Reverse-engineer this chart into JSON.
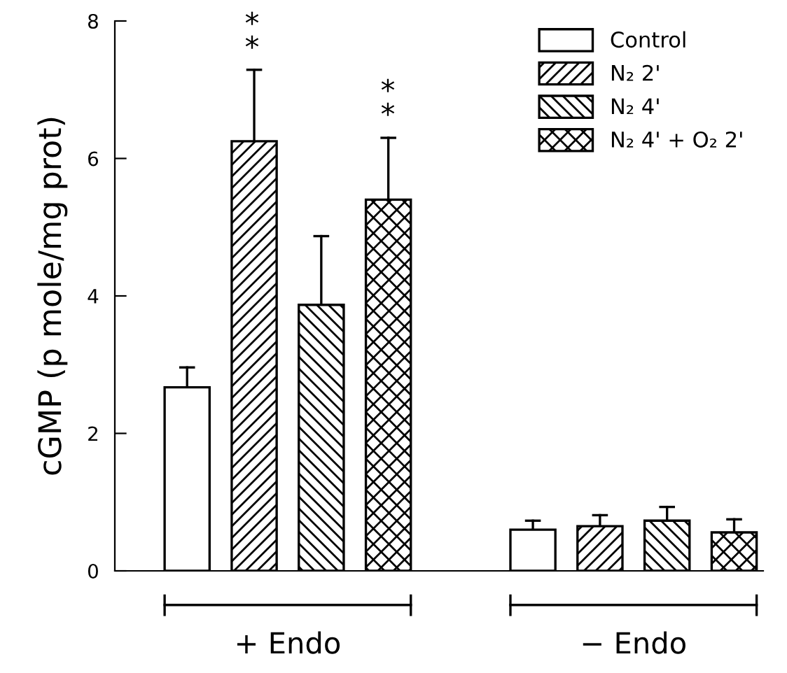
{
  "chart_data": {
    "type": "bar",
    "ylabel": "cGMP (p mole/mg prot)",
    "categories": [
      "+ Endo",
      "− Endo"
    ],
    "series": [
      {
        "name": "Control",
        "values": [
          2.67,
          0.6
        ],
        "errors": [
          0.29,
          0.13
        ]
      },
      {
        "name": "N₂ 2'",
        "values": [
          6.25,
          0.65
        ],
        "errors": [
          1.04,
          0.16
        ]
      },
      {
        "name": "N₂ 4'",
        "values": [
          3.87,
          0.73
        ],
        "errors": [
          1.0,
          0.2
        ]
      },
      {
        "name": "N₂ 4' + O₂ 2'",
        "values": [
          5.4,
          0.56
        ],
        "errors": [
          0.9,
          0.19
        ]
      }
    ],
    "ylim": [
      0,
      8
    ],
    "yticks": [
      0,
      2,
      4,
      6,
      8
    ],
    "legend": "top right",
    "annotations": [
      "**",
      "**"
    ]
  }
}
